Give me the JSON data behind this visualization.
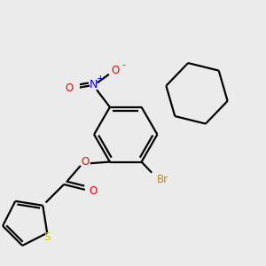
{
  "bg_color": "#ebebeb",
  "atoms": {
    "N": {
      "color": "#0000ff"
    },
    "O": {
      "color": "#ff0000"
    },
    "S": {
      "color": "#cccc00"
    },
    "Br": {
      "color": "#cc8800"
    },
    "C": {
      "color": "#000000"
    }
  },
  "lw": 1.6
}
